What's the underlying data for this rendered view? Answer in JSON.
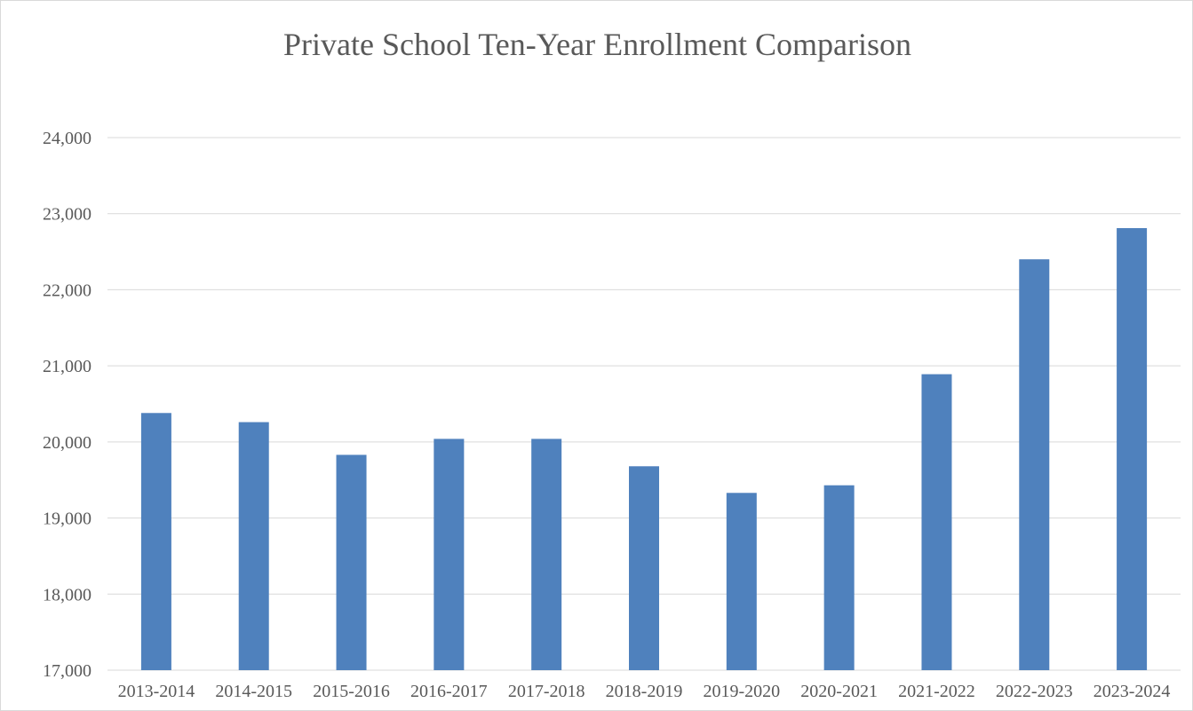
{
  "chart_data": {
    "type": "bar",
    "title": "Private School Ten-Year Enrollment Comparison",
    "categories": [
      "2013-2014",
      "2014-2015",
      "2015-2016",
      "2016-2017",
      "2017-2018",
      "2018-2019",
      "2019-2020",
      "2020-2021",
      "2021-2022",
      "2022-2023",
      "2023-2024"
    ],
    "values": [
      20380,
      20260,
      19830,
      20040,
      20040,
      19680,
      19330,
      19430,
      20890,
      22400,
      22810
    ],
    "ylim": [
      17000,
      24000
    ],
    "yticks": [
      "17,000",
      "18,000",
      "19,000",
      "20,000",
      "21,000",
      "22,000",
      "23,000",
      "24,000"
    ],
    "grid": true,
    "bar_color": "#4f81bd"
  }
}
